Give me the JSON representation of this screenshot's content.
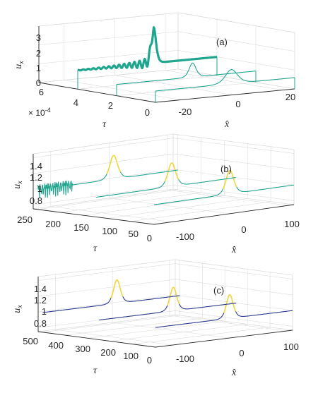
{
  "chart_data": [
    {
      "panel": "(a)",
      "type": "line",
      "ylabel": "u_x",
      "xlabel": "x̂",
      "zlabel": "τ",
      "x_ticks": [
        "-20",
        "0",
        "20"
      ],
      "t_ticks": [
        "0",
        "2",
        "4",
        "6"
      ],
      "t_multiplier": "× 10^{-4}",
      "u_ticks": [
        "0",
        "1",
        "2",
        "3"
      ],
      "xlim": [
        -30,
        25
      ],
      "tlim": [
        0,
        0.0006
      ],
      "ulim": [
        0,
        3
      ],
      "series": [
        {
          "tau": 0,
          "baseline": 0.6,
          "peaks": [
            {
              "x": 0,
              "height": 0.75,
              "width": 3.2
            }
          ]
        },
        {
          "tau": 0.0002,
          "baseline": 0.6,
          "peaks": [
            {
              "x": 0,
              "height": 0.75,
              "width": 1.8
            }
          ]
        },
        {
          "tau": 0.0004,
          "baseline": 1.0,
          "peaks": [
            {
              "x": 0,
              "height": 1.9,
              "width": 1.2
            }
          ],
          "oscillatory": true
        }
      ]
    },
    {
      "panel": "(b)",
      "type": "line",
      "ylabel": "u_x",
      "xlabel": "x̂",
      "zlabel": "τ",
      "x_ticks": [
        "-100",
        "0",
        "100"
      ],
      "t_ticks": [
        "0",
        "50",
        "100",
        "150",
        "200",
        "250"
      ],
      "u_ticks": [
        "0.8",
        "1",
        "1.2",
        "1.4"
      ],
      "xlim": [
        -130,
        110
      ],
      "tlim": [
        0,
        260
      ],
      "ulim": [
        0.75,
        1.45
      ],
      "series": [
        {
          "tau": 0,
          "baseline": 1.0,
          "peaks": [
            {
              "x": 0,
              "height": 0.3,
              "width": 9
            }
          ]
        },
        {
          "tau": 125,
          "baseline": 1.0,
          "peaks": [
            {
              "x": 0,
              "height": 0.3,
              "width": 9
            }
          ]
        },
        {
          "tau": 250,
          "baseline": 1.0,
          "peaks": [
            {
              "x": 0,
              "height": 0.3,
              "width": 9
            }
          ],
          "noise_left": true
        }
      ]
    },
    {
      "panel": "(c)",
      "type": "line",
      "ylabel": "u_x",
      "xlabel": "x̂",
      "zlabel": "τ",
      "x_ticks": [
        "-100",
        "0",
        "100"
      ],
      "t_ticks": [
        "0",
        "100",
        "200",
        "300",
        "400",
        "500"
      ],
      "u_ticks": [
        "0.8",
        "1",
        "1.2",
        "1.4"
      ],
      "xlim": [
        -130,
        110
      ],
      "tlim": [
        0,
        520
      ],
      "ulim": [
        0.75,
        1.45
      ],
      "series": [
        {
          "tau": 0,
          "baseline": 1.0,
          "peaks": [
            {
              "x": 0,
              "height": 0.3,
              "width": 8
            }
          ]
        },
        {
          "tau": 250,
          "baseline": 1.0,
          "peaks": [
            {
              "x": 0,
              "height": 0.3,
              "width": 8
            }
          ]
        },
        {
          "tau": 500,
          "baseline": 1.0,
          "peaks": [
            {
              "x": 0,
              "height": 0.3,
              "width": 8
            }
          ]
        }
      ]
    }
  ],
  "colors": {
    "axis": "#262626",
    "grid": "#dcdcdc",
    "teal": "#20a58f",
    "yellow": "#f2d83a",
    "blue": "#2c3b8f"
  }
}
